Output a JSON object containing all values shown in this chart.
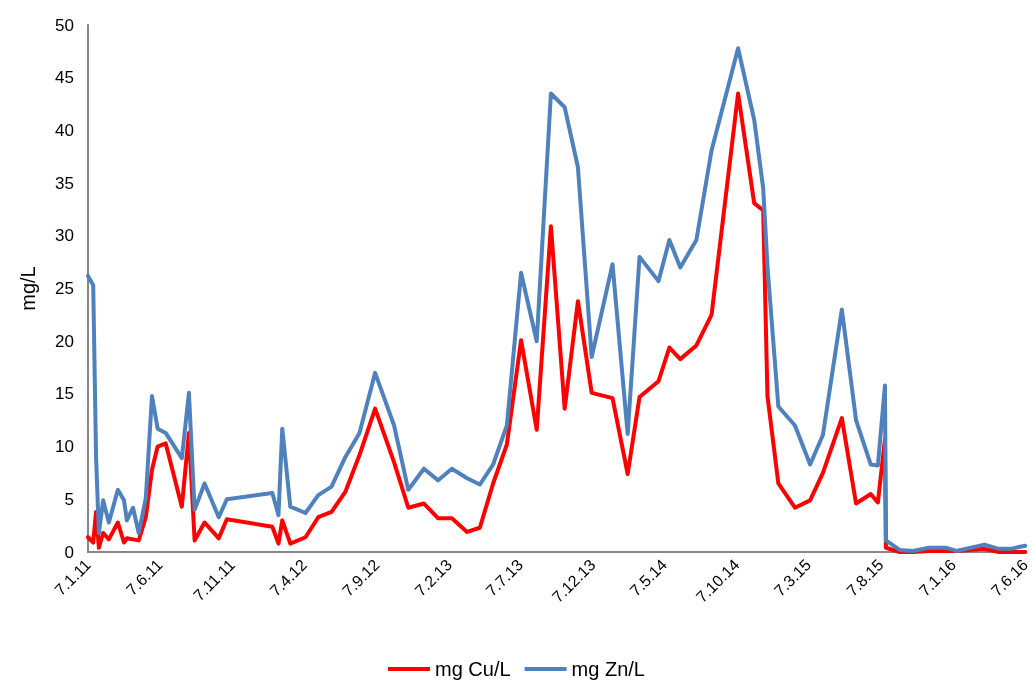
{
  "chart_data": {
    "type": "line",
    "ylabel": "mg/L",
    "ylim": [
      0,
      50
    ],
    "yticks": [
      0,
      5,
      10,
      15,
      20,
      25,
      30,
      35,
      40,
      45,
      50
    ],
    "xlim": [
      "2011-01-07",
      "2016-06-07"
    ],
    "xticks": [
      {
        "value": "2011-01-07",
        "label": "7.1.11"
      },
      {
        "value": "2011-06-07",
        "label": "7.6.11"
      },
      {
        "value": "2011-11-07",
        "label": "7.11.11"
      },
      {
        "value": "2012-04-07",
        "label": "7.4.12"
      },
      {
        "value": "2012-09-07",
        "label": "7.9.12"
      },
      {
        "value": "2013-02-07",
        "label": "7.2.13"
      },
      {
        "value": "2013-07-07",
        "label": "7.7.13"
      },
      {
        "value": "2013-12-07",
        "label": "7.12.13"
      },
      {
        "value": "2014-05-07",
        "label": "7.5.14"
      },
      {
        "value": "2014-10-07",
        "label": "7.10.14"
      },
      {
        "value": "2015-03-07",
        "label": "7.3.15"
      },
      {
        "value": "2015-08-07",
        "label": "7.8.15"
      },
      {
        "value": "2016-01-07",
        "label": "7.1.16"
      },
      {
        "value": "2016-06-07",
        "label": "7.6.16"
      }
    ],
    "x": [
      "2011-01-07",
      "2011-01-18",
      "2011-01-24",
      "2011-01-30",
      "2011-02-08",
      "2011-02-20",
      "2011-03-11",
      "2011-03-24",
      "2011-03-30",
      "2011-04-12",
      "2011-04-24",
      "2011-05-09",
      "2011-05-22",
      "2011-06-03",
      "2011-06-20",
      "2011-07-24",
      "2011-08-08",
      "2011-08-20",
      "2011-09-10",
      "2011-10-10",
      "2011-10-27",
      "2012-01-31",
      "2012-02-13",
      "2012-02-21",
      "2012-03-09",
      "2012-04-10",
      "2012-05-07",
      "2012-06-04",
      "2012-07-03",
      "2012-08-02",
      "2012-09-04",
      "2012-10-14",
      "2012-11-13",
      "2012-12-16",
      "2013-01-15",
      "2013-02-13",
      "2013-03-17",
      "2013-04-13",
      "2013-05-11",
      "2013-06-09",
      "2013-07-09",
      "2013-08-11",
      "2013-09-10",
      "2013-10-09",
      "2013-11-06",
      "2013-12-05",
      "2014-01-18",
      "2014-02-19",
      "2014-03-16",
      "2014-04-25",
      "2014-05-18",
      "2014-06-10",
      "2014-07-14",
      "2014-08-15",
      "2014-10-10",
      "2014-11-13",
      "2014-12-02",
      "2014-12-11",
      "2015-01-03",
      "2015-02-07",
      "2015-03-11",
      "2015-04-07",
      "2015-05-17",
      "2015-06-16",
      "2015-07-17",
      "2015-08-01",
      "2015-08-16",
      "2015-08-18",
      "2015-09-16",
      "2015-10-14",
      "2015-11-17",
      "2015-12-24",
      "2016-01-14",
      "2016-03-13",
      "2016-04-12",
      "2016-05-07",
      "2016-06-07"
    ],
    "series": [
      {
        "name": "mg Cu/L",
        "color": "#ff0000",
        "values": [
          1.4,
          0.9,
          3.8,
          0.4,
          1.8,
          1.2,
          2.8,
          0.9,
          1.3,
          1.2,
          1.1,
          3.3,
          7.8,
          10.0,
          10.3,
          4.3,
          11.3,
          1.1,
          2.8,
          1.3,
          3.1,
          2.4,
          0.8,
          3.0,
          0.8,
          1.4,
          3.3,
          3.8,
          5.7,
          9.2,
          13.6,
          8.5,
          4.2,
          4.6,
          3.2,
          3.2,
          1.9,
          2.3,
          6.5,
          10.2,
          20.1,
          11.6,
          30.9,
          13.6,
          23.8,
          15.1,
          14.6,
          7.4,
          14.7,
          16.2,
          19.4,
          18.3,
          19.6,
          22.5,
          43.5,
          33.1,
          32.4,
          14.8,
          6.5,
          4.2,
          4.9,
          7.5,
          12.7,
          4.6,
          5.5,
          4.7,
          10.7,
          0.4,
          0.0,
          0.0,
          0.1,
          0.1,
          0.1,
          0.3,
          0.0,
          0.0,
          0.0
        ]
      },
      {
        "name": "mg Zn/L",
        "color": "#4f81bd",
        "values": [
          26.2,
          25.3,
          9.0,
          1.8,
          4.9,
          2.8,
          5.9,
          4.9,
          3.0,
          4.2,
          1.8,
          5.1,
          14.8,
          11.7,
          11.3,
          8.9,
          15.1,
          4.0,
          6.5,
          3.3,
          5.0,
          5.6,
          3.5,
          11.7,
          4.3,
          3.7,
          5.4,
          6.2,
          9.0,
          11.3,
          17.0,
          12.0,
          5.9,
          7.9,
          6.8,
          7.9,
          7.0,
          6.4,
          8.3,
          12.0,
          26.5,
          20.0,
          43.5,
          42.2,
          36.5,
          18.5,
          27.3,
          11.2,
          28.0,
          25.7,
          29.6,
          27.0,
          29.6,
          38.1,
          47.8,
          41.0,
          34.5,
          27.1,
          13.8,
          12.0,
          8.3,
          11.1,
          23.0,
          12.5,
          8.3,
          8.2,
          15.8,
          1.1,
          0.2,
          0.1,
          0.4,
          0.4,
          0.1,
          0.7,
          0.3,
          0.3,
          0.6
        ]
      }
    ],
    "grid": false,
    "legend": "bottom",
    "marker": "none",
    "line_style": "solid"
  }
}
